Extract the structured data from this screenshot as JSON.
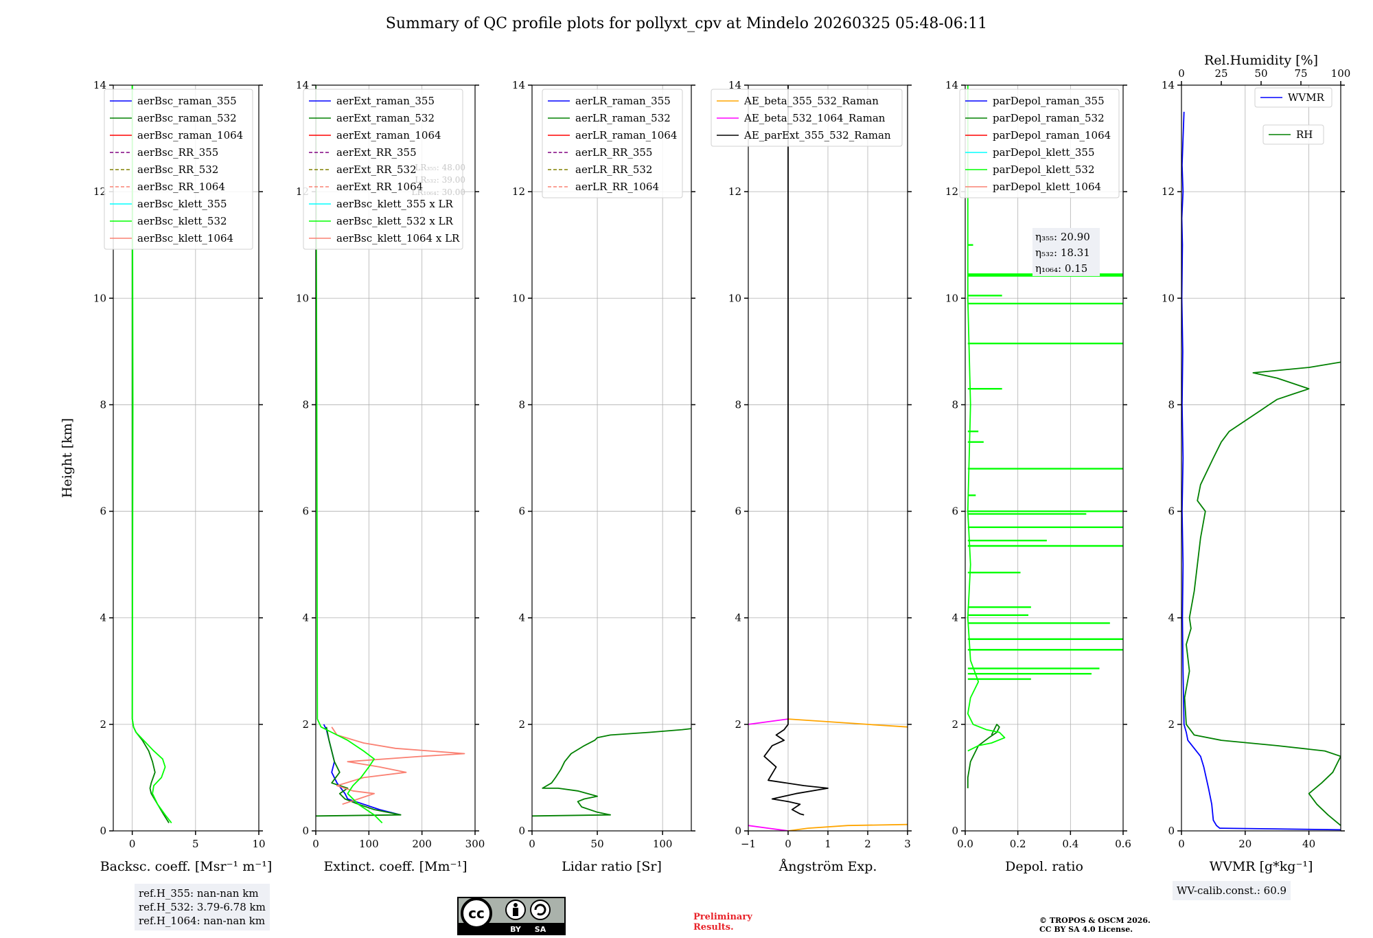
{
  "title": "Summary of QC profile plots for pollyxt_cpv at Mindelo 20260325 05:48-06:11",
  "ref_heights": [
    "ref.H_355: nan-nan km",
    "ref.H_532: 3.79-6.78 km",
    "ref.H_1064: nan-nan km"
  ],
  "wv_calib": "WV-calib.const.: 60.9",
  "preliminary": [
    "Preliminary",
    "Results."
  ],
  "copyright": [
    "© TROPOS & OSCM 2026.",
    "CC BY SA 4.0 License."
  ],
  "license_badge": {
    "text": "cc",
    "by": "BY",
    "sa": "SA"
  },
  "colors": {
    "blue": "#0000ff",
    "green": "#008000",
    "red": "#ff0000",
    "purple": "#800080",
    "olive": "#808000",
    "salmon": "#fa8072",
    "cyan": "#00ffff",
    "lime": "#00ff00",
    "orange": "#ffa500",
    "magenta": "#ff00ff",
    "black": "#000000"
  },
  "chart_data": [
    {
      "type": "line",
      "id": "bsc",
      "xlabel": "Backsc. coeff. [Msr⁻¹ m⁻¹]",
      "ylabel": "Height [km]",
      "xlim": [
        -1.5,
        10
      ],
      "ylim": [
        0,
        14
      ],
      "xticks": [
        0,
        5,
        10
      ],
      "yticks": [
        0,
        2,
        4,
        6,
        8,
        10,
        12,
        14
      ],
      "legend": [
        {
          "label": "aerBsc_raman_355",
          "color": "blue",
          "dash": false
        },
        {
          "label": "aerBsc_raman_532",
          "color": "green",
          "dash": false
        },
        {
          "label": "aerBsc_raman_1064",
          "color": "red",
          "dash": false
        },
        {
          "label": "aerBsc_RR_355",
          "color": "purple",
          "dash": true
        },
        {
          "label": "aerBsc_RR_532",
          "color": "olive",
          "dash": true
        },
        {
          "label": "aerBsc_RR_1064",
          "color": "salmon",
          "dash": true
        },
        {
          "label": "aerBsc_klett_355",
          "color": "cyan",
          "dash": false
        },
        {
          "label": "aerBsc_klett_532",
          "color": "lime",
          "dash": false
        },
        {
          "label": "aerBsc_klett_1064",
          "color": "salmon",
          "dash": false
        }
      ],
      "series": [
        {
          "name": "aerBsc_raman_532",
          "color": "green",
          "x": [
            2.9,
            2.5,
            2.0,
            1.5,
            1.4,
            1.5,
            1.8,
            1.6,
            1.3,
            0.8,
            0.3,
            0.1,
            0.0,
            0.0,
            0.0
          ],
          "y": [
            0.15,
            0.3,
            0.5,
            0.7,
            0.8,
            0.9,
            1.1,
            1.3,
            1.5,
            1.7,
            1.85,
            1.95,
            2.1,
            6,
            14
          ]
        },
        {
          "name": "aerBsc_klett_532",
          "color": "lime",
          "x": [
            3.1,
            2.6,
            2.0,
            1.6,
            1.7,
            2.3,
            2.6,
            2.4,
            1.7,
            0.9,
            0.3,
            0.1,
            0.0,
            0.05,
            0.0
          ],
          "y": [
            0.15,
            0.3,
            0.5,
            0.7,
            0.85,
            1.0,
            1.2,
            1.35,
            1.5,
            1.7,
            1.85,
            1.95,
            2.1,
            8,
            14
          ]
        }
      ]
    },
    {
      "type": "line",
      "id": "ext",
      "xlabel": "Extinct. coeff. [Mm⁻¹]",
      "xlim": [
        0,
        300
      ],
      "ylim": [
        0,
        14
      ],
      "xticks": [
        0,
        100,
        200,
        300
      ],
      "yticks": [
        0,
        2,
        4,
        6,
        8,
        10,
        12,
        14
      ],
      "legend": [
        {
          "label": "aerExt_raman_355",
          "color": "blue",
          "dash": false
        },
        {
          "label": "aerExt_raman_532",
          "color": "green",
          "dash": false
        },
        {
          "label": "aerExt_raman_1064",
          "color": "red",
          "dash": false
        },
        {
          "label": "aerExt_RR_355",
          "color": "purple",
          "dash": true
        },
        {
          "label": "aerExt_RR_532",
          "color": "olive",
          "dash": true
        },
        {
          "label": "aerExt_RR_1064",
          "color": "salmon",
          "dash": true
        },
        {
          "label": "aerBsc_klett_355 x LR",
          "color": "cyan",
          "dash": false
        },
        {
          "label": "aerBsc_klett_532 x LR",
          "color": "lime",
          "dash": false
        },
        {
          "label": "aerBsc_klett_1064 x LR",
          "color": "salmon",
          "dash": false
        }
      ],
      "lr_note": [
        "LR₃₅₅: 48.00",
        "LR₅₃₂: 39.00",
        "LR₁₀₆₄: 30.00"
      ],
      "series": [
        {
          "name": "aerExt_raman_355",
          "color": "blue",
          "x": [
            160,
            120,
            90,
            60,
            55,
            40,
            30,
            35,
            30,
            25,
            20,
            15
          ],
          "y": [
            0.3,
            0.4,
            0.5,
            0.6,
            0.7,
            0.9,
            1.1,
            1.3,
            1.5,
            1.7,
            1.9,
            2.0
          ]
        },
        {
          "name": "aerExt_raman_532",
          "color": "green",
          "x": [
            0,
            160,
            110,
            80,
            55,
            45,
            60,
            30,
            45,
            35,
            30,
            25,
            20
          ],
          "y": [
            0.28,
            0.3,
            0.4,
            0.5,
            0.6,
            0.7,
            0.8,
            0.9,
            1.1,
            1.3,
            1.5,
            1.7,
            1.95
          ]
        },
        {
          "name": "aerExt_RR_1064",
          "color": "salmon",
          "x": [
            50,
            80,
            110,
            70,
            40,
            90,
            170,
            120,
            60,
            200,
            280,
            150,
            90,
            40,
            30
          ],
          "y": [
            0.5,
            0.6,
            0.7,
            0.75,
            0.85,
            1.0,
            1.1,
            1.2,
            1.3,
            1.4,
            1.45,
            1.55,
            1.65,
            1.8,
            1.95
          ]
        },
        {
          "name": "aerBsc_klett_532 x LR",
          "color": "lime",
          "x": [
            125,
            110,
            80,
            60,
            70,
            85,
            100,
            110,
            90,
            60,
            30,
            10,
            3,
            2,
            0
          ],
          "y": [
            0.15,
            0.3,
            0.5,
            0.7,
            0.85,
            1.0,
            1.2,
            1.35,
            1.5,
            1.7,
            1.85,
            1.95,
            2.1,
            8,
            14
          ]
        }
      ]
    },
    {
      "type": "line",
      "id": "lr",
      "xlabel": "Lidar ratio [Sr]",
      "xlim": [
        0,
        122
      ],
      "ylim": [
        0,
        14
      ],
      "xticks": [
        0,
        50,
        100
      ],
      "yticks": [
        0,
        2,
        4,
        6,
        8,
        10,
        12,
        14
      ],
      "legend": [
        {
          "label": "aerLR_raman_355",
          "color": "blue",
          "dash": false
        },
        {
          "label": "aerLR_raman_532",
          "color": "green",
          "dash": false
        },
        {
          "label": "aerLR_raman_1064",
          "color": "red",
          "dash": false
        },
        {
          "label": "aerLR_RR_355",
          "color": "purple",
          "dash": true
        },
        {
          "label": "aerLR_RR_532",
          "color": "olive",
          "dash": true
        },
        {
          "label": "aerLR_RR_1064",
          "color": "salmon",
          "dash": true
        }
      ],
      "series": [
        {
          "name": "aerLR_raman_532",
          "color": "green",
          "x": [
            0,
            60,
            50,
            38,
            35,
            40,
            50,
            35,
            20,
            8,
            15,
            18,
            22,
            25,
            30,
            40,
            48,
            50,
            60,
            90,
            115,
            122
          ],
          "y": [
            0.28,
            0.3,
            0.35,
            0.45,
            0.55,
            0.6,
            0.65,
            0.75,
            0.8,
            0.8,
            0.9,
            1.0,
            1.15,
            1.3,
            1.45,
            1.6,
            1.7,
            1.75,
            1.8,
            1.85,
            1.9,
            1.92
          ]
        }
      ]
    },
    {
      "type": "line",
      "id": "ae",
      "xlabel": "Ångström Exp.",
      "xlim": [
        -1,
        3
      ],
      "ylim": [
        0,
        14
      ],
      "xticks": [
        -1,
        0,
        1,
        2,
        3
      ],
      "yticks": [
        0,
        2,
        4,
        6,
        8,
        10,
        12,
        14
      ],
      "legend": [
        {
          "label": "AE_beta_355_532_Raman",
          "color": "orange",
          "dash": false
        },
        {
          "label": "AE_beta_532_1064_Raman",
          "color": "magenta",
          "dash": false
        },
        {
          "label": "AE_parExt_355_532_Raman",
          "color": "black",
          "dash": false
        }
      ],
      "series": [
        {
          "name": "AE_beta_355_532_Raman",
          "color": "orange",
          "x": [
            0,
            1,
            2,
            3
          ],
          "y": [
            2.1,
            2.05,
            2.0,
            1.95
          ]
        },
        {
          "name": "AE_beta_355_532_Raman low",
          "color": "orange",
          "x": [
            0,
            0.5,
            1.5,
            3
          ],
          "y": [
            0.0,
            0.05,
            0.1,
            0.12
          ]
        },
        {
          "name": "AE_beta_532_1064_Raman",
          "color": "magenta",
          "x": [
            -1,
            -0.5,
            0
          ],
          "y": [
            2.0,
            2.05,
            2.1
          ]
        },
        {
          "name": "AE_beta_532_1064_Raman low",
          "color": "magenta",
          "x": [
            -1,
            -0.5,
            0
          ],
          "y": [
            0.1,
            0.05,
            0.0
          ]
        },
        {
          "name": "AE_parExt_355_532_Raman",
          "color": "black",
          "x": [
            0.4,
            0.3,
            0.1,
            0.3,
            0.0,
            -0.4,
            0.2,
            1.0,
            0.4,
            -0.5,
            -0.3,
            -0.6,
            -0.4,
            -0.1,
            -0.3,
            -0.1,
            0.0,
            0.0
          ],
          "y": [
            0.3,
            0.32,
            0.4,
            0.5,
            0.55,
            0.6,
            0.7,
            0.8,
            0.85,
            0.95,
            1.2,
            1.4,
            1.6,
            1.7,
            1.8,
            1.9,
            2.0,
            14
          ]
        }
      ]
    },
    {
      "type": "line",
      "id": "depol",
      "xlabel": "Depol. ratio",
      "xlim": [
        0,
        0.6
      ],
      "ylim": [
        0,
        14
      ],
      "xticks": [
        0.0,
        0.2,
        0.4,
        0.6
      ],
      "yticks": [
        0,
        2,
        4,
        6,
        8,
        10,
        12,
        14
      ],
      "legend": [
        {
          "label": "parDepol_raman_355",
          "color": "blue",
          "dash": false
        },
        {
          "label": "parDepol_raman_532",
          "color": "green",
          "dash": false
        },
        {
          "label": "parDepol_raman_1064",
          "color": "red",
          "dash": false
        },
        {
          "label": "parDepol_klett_355",
          "color": "cyan",
          "dash": false
        },
        {
          "label": "parDepol_klett_532",
          "color": "lime",
          "dash": false
        },
        {
          "label": "parDepol_klett_1064",
          "color": "salmon",
          "dash": false
        }
      ],
      "eta": [
        "η₃₅₅: 20.90",
        "η₅₃₂: 18.31",
        "η₁₀₆₄: 0.15"
      ],
      "series": [
        {
          "name": "parDepol_raman_532",
          "color": "green",
          "x": [
            0.01,
            0.01,
            0.02,
            0.05,
            0.09,
            0.12,
            0.13,
            0.12,
            0.1
          ],
          "y": [
            0.8,
            1.0,
            1.3,
            1.6,
            1.75,
            1.85,
            1.95,
            2.0,
            1.8
          ]
        },
        {
          "name": "parDepol_klett_532",
          "color": "lime",
          "x": [
            0.01,
            0.05,
            0.1,
            0.15,
            0.13,
            0.08,
            0.03,
            0.01,
            0.02,
            0.05,
            0.02,
            0.01,
            0.02,
            0.01,
            0.02,
            0.01,
            0.01
          ],
          "y": [
            1.5,
            1.6,
            1.65,
            1.75,
            1.85,
            1.9,
            2.0,
            2.2,
            2.5,
            2.8,
            3.2,
            4.0,
            5.0,
            6.0,
            8.0,
            10.0,
            14
          ]
        }
      ],
      "spikes": [
        {
          "h": 10.45,
          "v": 0.6
        },
        {
          "h": 10.42,
          "v": 0.6
        },
        {
          "h": 9.9,
          "v": 0.6
        },
        {
          "h": 9.15,
          "v": 0.6
        },
        {
          "h": 6.8,
          "v": 0.6
        },
        {
          "h": 6.0,
          "v": 0.6
        },
        {
          "h": 5.7,
          "v": 0.6
        },
        {
          "h": 5.35,
          "v": 0.6
        },
        {
          "h": 3.6,
          "v": 0.6
        },
        {
          "h": 3.4,
          "v": 0.6
        },
        {
          "h": 3.05,
          "v": 0.51
        },
        {
          "h": 2.95,
          "v": 0.48
        },
        {
          "h": 3.9,
          "v": 0.55
        },
        {
          "h": 5.95,
          "v": 0.46
        },
        {
          "h": 5.45,
          "v": 0.31
        },
        {
          "h": 4.2,
          "v": 0.25
        },
        {
          "h": 4.05,
          "v": 0.24
        },
        {
          "h": 2.85,
          "v": 0.25
        },
        {
          "h": 4.85,
          "v": 0.21
        },
        {
          "h": 10.05,
          "v": 0.14
        },
        {
          "h": 8.3,
          "v": 0.14
        },
        {
          "h": 7.3,
          "v": 0.07
        },
        {
          "h": 7.5,
          "v": 0.05
        },
        {
          "h": 6.3,
          "v": 0.04
        },
        {
          "h": 11.0,
          "v": 0.03
        }
      ]
    },
    {
      "type": "line",
      "id": "wvmr",
      "xlabel": "WVMR [g*kg⁻¹]",
      "xlim": [
        0,
        50
      ],
      "ylim": [
        0,
        14
      ],
      "xticks": [
        0,
        20,
        40
      ],
      "yticks": [
        0,
        2,
        4,
        6,
        8,
        10,
        12,
        14
      ],
      "top_axis": {
        "label": "Rel.Humidity [%]",
        "lim": [
          0,
          100
        ],
        "ticks": [
          0,
          25,
          50,
          75,
          100
        ]
      },
      "legend": [
        {
          "label": "WVMR",
          "color": "blue",
          "dash": false
        },
        {
          "label": "RH",
          "color": "green",
          "dash": false
        }
      ],
      "series": [
        {
          "name": "WVMR",
          "color": "blue",
          "x": [
            50,
            12,
            11,
            10,
            9.5,
            8.5,
            7,
            6,
            4,
            2,
            1.5,
            0.8,
            0.5,
            0.3,
            0.5,
            0.2,
            0.5,
            0.2,
            0.4,
            0.1,
            0.3,
            0.1,
            0.5,
            0.2,
            0.8
          ],
          "y": [
            0.02,
            0.05,
            0.1,
            0.2,
            0.5,
            0.8,
            1.2,
            1.4,
            1.55,
            1.7,
            1.85,
            2.0,
            3.0,
            4.0,
            5.0,
            6.0,
            7.0,
            8.0,
            9.0,
            10.0,
            11.0,
            11.5,
            12.0,
            12.5,
            13.5
          ]
        },
        {
          "name": "RH",
          "color": "green",
          "rh": true,
          "x": [
            100,
            92,
            85,
            80,
            88,
            95,
            100,
            90,
            60,
            25,
            8,
            3,
            2,
            5,
            3,
            6,
            5,
            8,
            10,
            12,
            15,
            10,
            12,
            20,
            25,
            30,
            40,
            50,
            55,
            60,
            70,
            80,
            70,
            60,
            45,
            80,
            100
          ],
          "y": [
            0.1,
            0.3,
            0.5,
            0.7,
            0.9,
            1.1,
            1.4,
            1.5,
            1.6,
            1.7,
            1.8,
            2.0,
            2.5,
            3.0,
            3.5,
            3.8,
            4.0,
            4.5,
            5.0,
            5.5,
            6.0,
            6.2,
            6.5,
            7.0,
            7.3,
            7.5,
            7.7,
            7.9,
            8.0,
            8.1,
            8.2,
            8.3,
            8.4,
            8.5,
            8.6,
            8.7,
            8.8
          ]
        }
      ]
    }
  ]
}
